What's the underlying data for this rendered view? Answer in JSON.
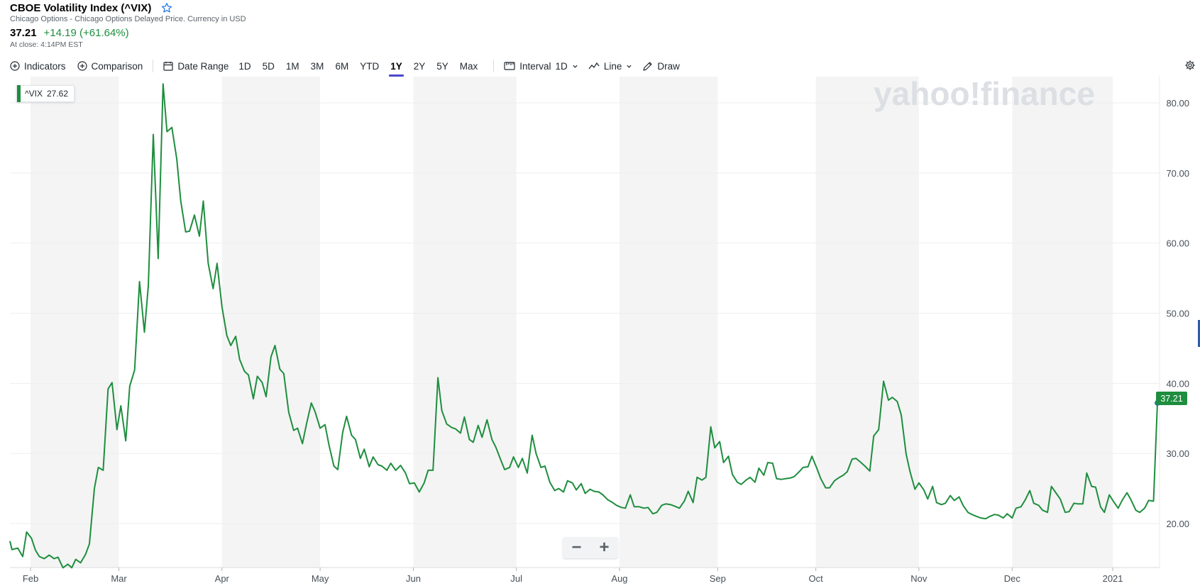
{
  "header": {
    "title": "CBOE Volatility Index (^VIX)",
    "subtitle": "Chicago Options - Chicago Options Delayed Price. Currency in USD",
    "price": "37.21",
    "change": "+14.19 (+61.64%)",
    "close_time": "At close: 4:14PM EST"
  },
  "toolbar": {
    "indicators": "Indicators",
    "comparison": "Comparison",
    "date_range": "Date Range",
    "ranges": [
      "1D",
      "5D",
      "1M",
      "3M",
      "6M",
      "YTD",
      "1Y",
      "2Y",
      "5Y",
      "Max"
    ],
    "active_range": "1Y",
    "interval_label": "Interval",
    "interval_value": "1D",
    "chart_type": "Line",
    "draw": "Draw"
  },
  "legend": {
    "symbol": "^VIX",
    "value": "27.62"
  },
  "last_price_label": "37.21",
  "watermark": "yahoo!finance",
  "zoom": {
    "minus": "−",
    "plus": "+"
  },
  "colors": {
    "line": "#1e8e3e",
    "accent": "#4b47c9",
    "band": "#f4f4f4",
    "marker": "#1a73e8"
  },
  "chart_data": {
    "type": "line",
    "title": "",
    "xlabel": "",
    "ylabel": "",
    "ylim": [
      13,
      83.5
    ],
    "yticks": [
      "20.00",
      "30.00",
      "40.00",
      "50.00",
      "60.00",
      "70.00",
      "80.00"
    ],
    "ytick_values": [
      20,
      30,
      40,
      50,
      60,
      70,
      80
    ],
    "xticks": [
      {
        "label": "Feb",
        "x": 2.5
      },
      {
        "label": "Mar",
        "x": 11.5
      },
      {
        "label": "Apr",
        "x": 22
      },
      {
        "label": "May",
        "x": 32
      },
      {
        "label": "Jun",
        "x": 41.5
      },
      {
        "label": "Jul",
        "x": 52
      },
      {
        "label": "Aug",
        "x": 62.5
      },
      {
        "label": "Sep",
        "x": 72.5
      },
      {
        "label": "Oct",
        "x": 82.5
      },
      {
        "label": "Nov",
        "x": 93
      },
      {
        "label": "Dec",
        "x": 102.5
      },
      {
        "label": "2021",
        "x": 112.75
      }
    ],
    "x_unit": "weeks",
    "x_range": [
      0.4,
      120.5
    ],
    "shaded_bands": [
      [
        2.5,
        11.5
      ],
      [
        22,
        32
      ],
      [
        41.5,
        52
      ],
      [
        62.5,
        72.5
      ],
      [
        82.5,
        93
      ],
      [
        102.5,
        112.75
      ]
    ],
    "grid": true,
    "legend_position": "top-left",
    "series": [
      {
        "name": "^VIX",
        "points": [
          [
            0.4,
            17.5
          ],
          [
            0.6,
            16.3
          ],
          [
            1.2,
            16.5
          ],
          [
            1.7,
            15.3
          ],
          [
            2.1,
            18.8
          ],
          [
            2.6,
            17.9
          ],
          [
            3.0,
            16.2
          ],
          [
            3.4,
            15.3
          ],
          [
            3.9,
            15.0
          ],
          [
            4.4,
            15.5
          ],
          [
            4.9,
            15.0
          ],
          [
            5.3,
            15.2
          ],
          [
            5.8,
            13.7
          ],
          [
            6.3,
            14.2
          ],
          [
            6.7,
            13.7
          ],
          [
            7.1,
            14.9
          ],
          [
            7.6,
            14.4
          ],
          [
            8.1,
            15.6
          ],
          [
            8.5,
            17.1
          ],
          [
            9.0,
            25.0
          ],
          [
            9.4,
            28.0
          ],
          [
            9.9,
            27.6
          ],
          [
            10.4,
            39.2
          ],
          [
            10.8,
            40.1
          ],
          [
            11.3,
            33.4
          ],
          [
            11.7,
            36.8
          ],
          [
            12.2,
            31.8
          ],
          [
            12.6,
            39.6
          ],
          [
            13.1,
            41.9
          ],
          [
            13.6,
            54.5
          ],
          [
            14.1,
            47.3
          ],
          [
            14.5,
            53.9
          ],
          [
            15.0,
            75.5
          ],
          [
            15.5,
            57.8
          ],
          [
            16.0,
            82.7
          ],
          [
            16.4,
            75.9
          ],
          [
            16.9,
            76.5
          ],
          [
            17.4,
            72.0
          ],
          [
            17.8,
            66.0
          ],
          [
            18.3,
            61.6
          ],
          [
            18.7,
            61.7
          ],
          [
            19.2,
            64.0
          ],
          [
            19.7,
            61.0
          ],
          [
            20.1,
            66.0
          ],
          [
            20.6,
            57.1
          ],
          [
            21.1,
            53.5
          ],
          [
            21.5,
            57.1
          ],
          [
            22.0,
            50.9
          ],
          [
            22.5,
            46.8
          ],
          [
            22.9,
            45.4
          ],
          [
            23.4,
            46.7
          ],
          [
            23.8,
            43.4
          ],
          [
            24.3,
            41.7
          ],
          [
            24.7,
            41.2
          ],
          [
            25.2,
            37.8
          ],
          [
            25.6,
            41.0
          ],
          [
            26.1,
            40.1
          ],
          [
            26.5,
            38.1
          ],
          [
            27.0,
            43.8
          ],
          [
            27.4,
            45.4
          ],
          [
            27.9,
            42.0
          ],
          [
            28.3,
            41.4
          ],
          [
            28.8,
            35.9
          ],
          [
            29.3,
            33.3
          ],
          [
            29.7,
            33.6
          ],
          [
            30.2,
            31.4
          ],
          [
            30.6,
            34.1
          ],
          [
            31.1,
            37.2
          ],
          [
            31.5,
            35.9
          ],
          [
            32.0,
            33.6
          ],
          [
            32.5,
            34.1
          ],
          [
            32.9,
            31.2
          ],
          [
            33.4,
            28.2
          ],
          [
            33.8,
            27.7
          ],
          [
            34.3,
            33.0
          ],
          [
            34.7,
            35.3
          ],
          [
            35.2,
            32.6
          ],
          [
            35.6,
            32.0
          ],
          [
            36.1,
            29.3
          ],
          [
            36.5,
            30.6
          ],
          [
            37.0,
            28.1
          ],
          [
            37.4,
            29.5
          ],
          [
            37.9,
            28.4
          ],
          [
            38.3,
            28.2
          ],
          [
            38.8,
            27.6
          ],
          [
            39.2,
            28.6
          ],
          [
            39.7,
            27.6
          ],
          [
            40.2,
            28.3
          ],
          [
            40.7,
            27.2
          ],
          [
            41.1,
            25.7
          ],
          [
            41.6,
            25.8
          ],
          [
            42.1,
            24.5
          ],
          [
            42.6,
            25.8
          ],
          [
            43.0,
            27.6
          ],
          [
            43.5,
            27.6
          ],
          [
            44.0,
            40.8
          ],
          [
            44.4,
            36.1
          ],
          [
            44.9,
            34.2
          ],
          [
            45.4,
            33.7
          ],
          [
            45.8,
            33.5
          ],
          [
            46.3,
            32.9
          ],
          [
            46.7,
            35.2
          ],
          [
            47.2,
            32.0
          ],
          [
            47.6,
            31.6
          ],
          [
            48.1,
            34.0
          ],
          [
            48.5,
            32.3
          ],
          [
            49.0,
            34.8
          ],
          [
            49.5,
            32.0
          ],
          [
            49.9,
            30.9
          ],
          [
            50.4,
            29.1
          ],
          [
            50.8,
            27.7
          ],
          [
            51.3,
            28.0
          ],
          [
            51.7,
            29.5
          ],
          [
            52.2,
            28.0
          ],
          [
            52.6,
            29.3
          ],
          [
            53.1,
            27.2
          ],
          [
            53.6,
            32.6
          ],
          [
            54.0,
            30.0
          ],
          [
            54.5,
            28.0
          ],
          [
            54.9,
            28.2
          ],
          [
            55.4,
            25.9
          ],
          [
            55.9,
            24.7
          ],
          [
            56.3,
            25.0
          ],
          [
            56.8,
            24.5
          ],
          [
            57.2,
            26.1
          ],
          [
            57.7,
            25.8
          ],
          [
            58.1,
            24.8
          ],
          [
            58.6,
            25.7
          ],
          [
            59.0,
            24.3
          ],
          [
            59.5,
            24.9
          ],
          [
            59.9,
            24.6
          ],
          [
            60.4,
            24.5
          ],
          [
            60.8,
            24.1
          ],
          [
            61.3,
            23.4
          ],
          [
            61.8,
            23.0
          ],
          [
            62.2,
            22.6
          ],
          [
            62.7,
            22.3
          ],
          [
            63.1,
            22.2
          ],
          [
            63.6,
            24.1
          ],
          [
            64.0,
            22.4
          ],
          [
            64.5,
            22.4
          ],
          [
            65.0,
            22.2
          ],
          [
            65.4,
            22.3
          ],
          [
            65.9,
            21.4
          ],
          [
            66.3,
            21.6
          ],
          [
            66.8,
            22.6
          ],
          [
            67.2,
            22.8
          ],
          [
            67.7,
            22.7
          ],
          [
            68.1,
            22.5
          ],
          [
            68.6,
            22.2
          ],
          [
            69.1,
            23.2
          ],
          [
            69.5,
            24.6
          ],
          [
            70.0,
            23.0
          ],
          [
            70.4,
            26.6
          ],
          [
            70.9,
            26.2
          ],
          [
            71.3,
            26.6
          ],
          [
            71.8,
            33.8
          ],
          [
            72.2,
            30.8
          ],
          [
            72.7,
            31.7
          ],
          [
            73.1,
            28.7
          ],
          [
            73.6,
            29.6
          ],
          [
            74.0,
            27.0
          ],
          [
            74.5,
            25.9
          ],
          [
            74.9,
            25.6
          ],
          [
            75.4,
            26.2
          ],
          [
            75.8,
            26.6
          ],
          [
            76.3,
            25.9
          ],
          [
            76.7,
            27.9
          ],
          [
            77.2,
            26.9
          ],
          [
            77.6,
            28.7
          ],
          [
            78.1,
            28.6
          ],
          [
            78.5,
            26.4
          ],
          [
            79.0,
            26.3
          ],
          [
            79.4,
            26.4
          ],
          [
            79.9,
            26.5
          ],
          [
            80.3,
            26.7
          ],
          [
            80.8,
            27.4
          ],
          [
            81.2,
            28.0
          ],
          [
            81.7,
            28.1
          ],
          [
            82.1,
            29.6
          ],
          [
            82.6,
            27.9
          ],
          [
            83.0,
            26.4
          ],
          [
            83.5,
            25.1
          ],
          [
            83.9,
            25.1
          ],
          [
            84.4,
            26.1
          ],
          [
            84.8,
            26.5
          ],
          [
            85.3,
            26.9
          ],
          [
            85.7,
            27.4
          ],
          [
            86.2,
            29.2
          ],
          [
            86.6,
            29.3
          ],
          [
            87.1,
            28.7
          ],
          [
            87.5,
            28.2
          ],
          [
            88.0,
            27.5
          ],
          [
            88.4,
            32.5
          ],
          [
            88.9,
            33.4
          ],
          [
            89.4,
            40.3
          ],
          [
            89.9,
            37.6
          ],
          [
            90.3,
            38.0
          ],
          [
            90.8,
            37.4
          ],
          [
            91.2,
            35.5
          ],
          [
            91.7,
            29.9
          ],
          [
            92.1,
            27.4
          ],
          [
            92.6,
            24.9
          ],
          [
            93.0,
            25.8
          ],
          [
            93.5,
            24.8
          ],
          [
            93.9,
            23.5
          ],
          [
            94.4,
            25.3
          ],
          [
            94.8,
            23.0
          ],
          [
            95.3,
            22.7
          ],
          [
            95.7,
            22.9
          ],
          [
            96.2,
            24.0
          ],
          [
            96.6,
            23.3
          ],
          [
            97.1,
            23.8
          ],
          [
            97.5,
            22.6
          ],
          [
            98.0,
            21.6
          ],
          [
            98.4,
            21.3
          ],
          [
            98.9,
            21.0
          ],
          [
            99.3,
            20.8
          ],
          [
            99.8,
            20.7
          ],
          [
            100.2,
            21.0
          ],
          [
            100.7,
            21.3
          ],
          [
            101.1,
            21.2
          ],
          [
            101.6,
            20.8
          ],
          [
            102.0,
            21.4
          ],
          [
            102.5,
            20.8
          ],
          [
            102.9,
            22.2
          ],
          [
            103.4,
            22.4
          ],
          [
            103.8,
            23.3
          ],
          [
            104.3,
            24.7
          ],
          [
            104.7,
            22.9
          ],
          [
            105.2,
            22.6
          ],
          [
            105.6,
            21.9
          ],
          [
            106.1,
            21.6
          ],
          [
            106.5,
            25.3
          ],
          [
            107.0,
            24.3
          ],
          [
            107.4,
            23.5
          ],
          [
            107.9,
            21.6
          ],
          [
            108.3,
            21.7
          ],
          [
            108.8,
            22.9
          ],
          [
            109.2,
            22.8
          ],
          [
            109.7,
            22.8
          ],
          [
            110.1,
            27.2
          ],
          [
            110.6,
            25.3
          ],
          [
            111.0,
            25.2
          ],
          [
            111.5,
            22.4
          ],
          [
            111.9,
            21.6
          ],
          [
            112.4,
            24.1
          ],
          [
            112.8,
            23.2
          ],
          [
            113.3,
            22.2
          ],
          [
            113.7,
            23.3
          ],
          [
            114.2,
            24.4
          ],
          [
            114.6,
            23.4
          ],
          [
            115.1,
            21.9
          ],
          [
            115.5,
            21.6
          ],
          [
            116.0,
            22.2
          ],
          [
            116.4,
            23.3
          ],
          [
            116.9,
            23.2
          ],
          [
            117.3,
            37.21
          ]
        ]
      }
    ]
  }
}
